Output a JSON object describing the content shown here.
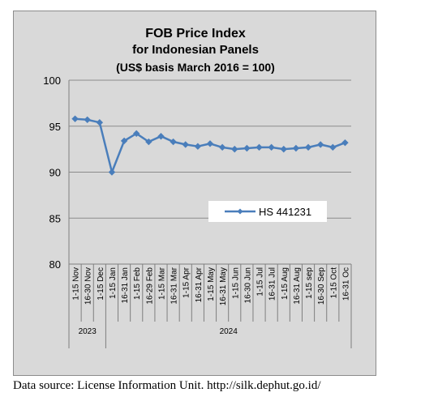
{
  "chart_data": {
    "type": "line",
    "title": [
      "FOB Price Index",
      "for Indonesian Panels",
      "(US$ basis March 2016 = 100)"
    ],
    "xlabel": "",
    "ylabel": "",
    "ylim": [
      80,
      100
    ],
    "yticks": [
      80,
      85,
      90,
      95,
      100
    ],
    "grid": true,
    "legend_position": "center-right",
    "categories": [
      "1-15 Nov",
      "16-30 Nov",
      "1-15 Dec",
      "1-15 Jan",
      "16-31 Jan",
      "1-15 Feb",
      "16-29 Feb",
      "1-15 Mar",
      "16-31 Mar",
      "1-15 Apr",
      "16-31 Apr",
      "1-15 May",
      "16-31 May",
      "1-15 Jun",
      "16-30 Jun",
      "1-15 Jul",
      "16-31 Jul",
      "1-15 Aug",
      "16-31 Aug",
      "1-15 sep",
      "16-30 Sep",
      "1-15 Oct",
      "16-31 Oc"
    ],
    "year_groups": [
      {
        "label": "2023",
        "count": 3
      },
      {
        "label": "2024",
        "count": 20
      }
    ],
    "series": [
      {
        "name": "HS 441231",
        "color": "#4a7ebb",
        "values": [
          95.8,
          95.7,
          95.4,
          90.0,
          93.4,
          94.2,
          93.3,
          93.9,
          93.3,
          93.0,
          92.8,
          93.1,
          92.7,
          92.5,
          92.6,
          92.7,
          92.7,
          92.5,
          92.6,
          92.7,
          93.0,
          92.7,
          93.2
        ]
      }
    ]
  },
  "source_note": "Data source: License Information Unit. http://silk.dephut.go.id/"
}
